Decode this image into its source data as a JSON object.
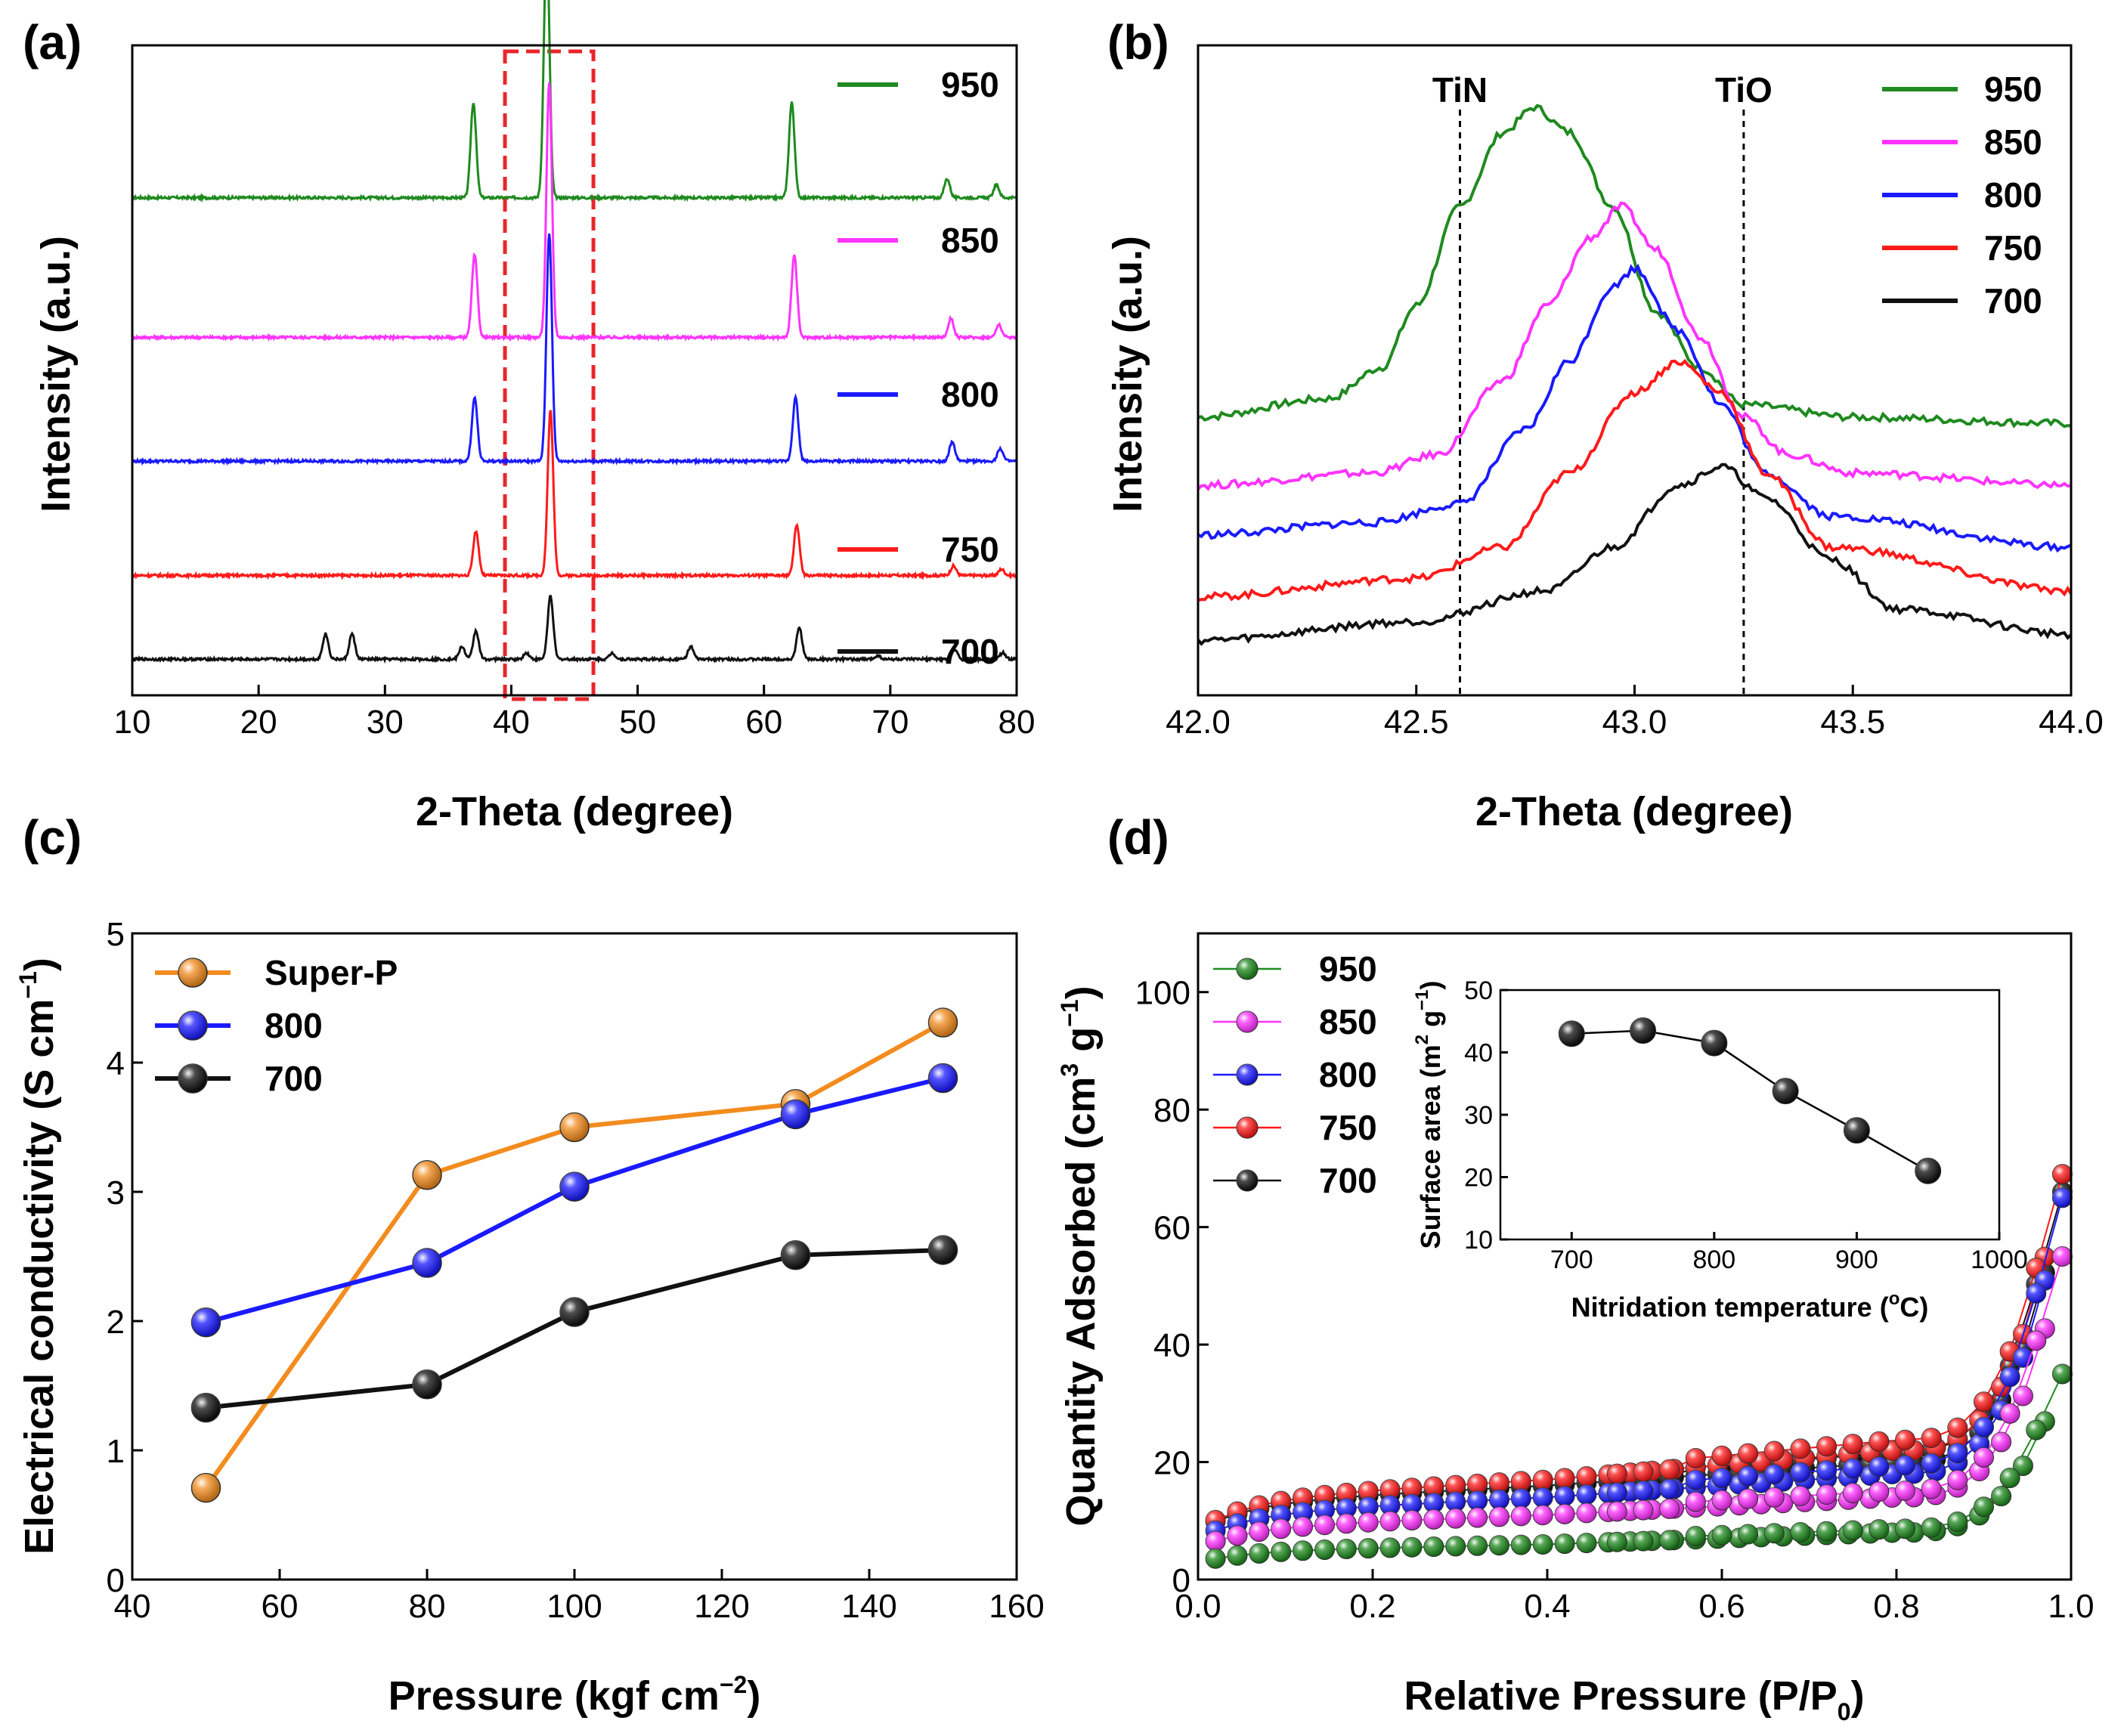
{
  "colors": {
    "950": "#1f8a1f",
    "850": "#ff33ff",
    "800": "#1a1aff",
    "750": "#ff1a1a",
    "700": "#111111",
    "superp": "#f28c1e",
    "box": "#e8262b",
    "gray_green": "#2e8b2e"
  },
  "chart_data": [
    {
      "id": "a",
      "letter": "(a)",
      "type": "line",
      "title": "",
      "xlabel": "2-Theta (degree)",
      "ylabel": "Intensity (a.u.)",
      "xlim": [
        10,
        80
      ],
      "x_ticks": [
        "10",
        "20",
        "30",
        "40",
        "50",
        "60",
        "70",
        "80"
      ],
      "y_ticks": [],
      "highlight_box_x": [
        39.5,
        46.5
      ],
      "series": [
        {
          "name": "950",
          "color_key": "950",
          "baseline": 0.76,
          "peaks": [
            [
              37.0,
              0.15
            ],
            [
              42.8,
              0.41
            ],
            [
              62.2,
              0.15
            ],
            [
              74.5,
              0.03
            ],
            [
              78.4,
              0.02
            ]
          ]
        },
        {
          "name": "850",
          "color_key": "850",
          "baseline": 0.54,
          "peaks": [
            [
              37.1,
              0.13
            ],
            [
              43.0,
              0.4
            ],
            [
              62.4,
              0.13
            ],
            [
              74.8,
              0.03
            ],
            [
              78.6,
              0.02
            ]
          ]
        },
        {
          "name": "800",
          "color_key": "800",
          "baseline": 0.345,
          "peaks": [
            [
              37.1,
              0.1
            ],
            [
              43.0,
              0.36
            ],
            [
              62.5,
              0.1
            ],
            [
              74.9,
              0.03
            ],
            [
              78.7,
              0.02
            ]
          ]
        },
        {
          "name": "750",
          "color_key": "750",
          "baseline": 0.165,
          "peaks": [
            [
              37.2,
              0.07
            ],
            [
              43.1,
              0.26
            ],
            [
              62.6,
              0.08
            ],
            [
              75.0,
              0.015
            ],
            [
              78.8,
              0.01
            ]
          ]
        },
        {
          "name": "700",
          "color_key": "700",
          "baseline": 0.033,
          "peaks": [
            [
              25.3,
              0.04
            ],
            [
              27.4,
              0.04
            ],
            [
              36.1,
              0.02
            ],
            [
              37.2,
              0.045
            ],
            [
              41.2,
              0.01
            ],
            [
              43.1,
              0.1
            ],
            [
              48.0,
              0.01
            ],
            [
              54.2,
              0.02
            ],
            [
              62.8,
              0.05
            ],
            [
              69.0,
              0.006
            ],
            [
              75.1,
              0.015
            ],
            [
              78.9,
              0.01
            ]
          ]
        }
      ],
      "legend": [
        "950",
        "850",
        "800",
        "750",
        "700"
      ]
    },
    {
      "id": "b",
      "letter": "(b)",
      "type": "line",
      "title": "",
      "xlabel": "2-Theta (degree)",
      "ylabel": "Intensity (a.u.)",
      "xlim": [
        42.0,
        44.0
      ],
      "x_ticks": [
        "42.0",
        "42.5",
        "43.0",
        "43.5",
        "44.0"
      ],
      "y_ticks": [],
      "ref_lines": [
        {
          "label": "TiN",
          "x": 42.6
        },
        {
          "label": "TiO",
          "x": 43.25
        }
      ],
      "series": [
        {
          "name": "950",
          "color_key": "950",
          "x": [
            42.0,
            42.3,
            42.42,
            42.5,
            42.6,
            42.7,
            42.77,
            42.85,
            42.95,
            43.05,
            43.15,
            43.25,
            43.5,
            44.0
          ],
          "y": [
            0.4,
            0.43,
            0.48,
            0.58,
            0.74,
            0.86,
            0.9,
            0.86,
            0.74,
            0.57,
            0.48,
            0.42,
            0.4,
            0.39
          ]
        },
        {
          "name": "850",
          "color_key": "850",
          "x": [
            42.0,
            42.4,
            42.55,
            42.7,
            42.8,
            42.9,
            42.97,
            43.05,
            43.15,
            43.25,
            43.35,
            43.5,
            44.0
          ],
          "y": [
            0.29,
            0.31,
            0.34,
            0.46,
            0.58,
            0.69,
            0.74,
            0.67,
            0.53,
            0.4,
            0.34,
            0.31,
            0.29
          ]
        },
        {
          "name": "800",
          "color_key": "800",
          "x": [
            42.0,
            42.4,
            42.6,
            42.75,
            42.85,
            42.95,
            43.0,
            43.1,
            43.2,
            43.3,
            43.45,
            44.0
          ],
          "y": [
            0.21,
            0.23,
            0.26,
            0.38,
            0.49,
            0.61,
            0.64,
            0.54,
            0.42,
            0.31,
            0.24,
            0.19
          ]
        },
        {
          "name": "750",
          "color_key": "750",
          "x": [
            42.0,
            42.5,
            42.7,
            42.85,
            43.0,
            43.1,
            43.2,
            43.3,
            43.45,
            44.0
          ],
          "y": [
            0.11,
            0.14,
            0.19,
            0.31,
            0.44,
            0.49,
            0.44,
            0.31,
            0.19,
            0.12
          ]
        },
        {
          "name": "700",
          "color_key": "700",
          "x": [
            42.0,
            42.5,
            42.8,
            42.95,
            43.1,
            43.2,
            43.3,
            43.45,
            43.6,
            44.0
          ],
          "y": [
            0.04,
            0.07,
            0.12,
            0.19,
            0.29,
            0.32,
            0.27,
            0.17,
            0.09,
            0.05
          ]
        }
      ],
      "legend": [
        "950",
        "850",
        "800",
        "750",
        "700"
      ]
    },
    {
      "id": "c",
      "letter": "(c)",
      "type": "line",
      "title": "",
      "xlabel_main": "Pressure (kgf cm",
      "xlabel_sup": "−2",
      "xlabel_end": ")",
      "ylabel_main": "Electrical conductivity (S cm",
      "ylabel_sup": "−1",
      "ylabel_end": ")",
      "xlim": [
        40,
        160
      ],
      "ylim": [
        0,
        5
      ],
      "x_ticks": [
        "40",
        "60",
        "80",
        "100",
        "120",
        "140",
        "160"
      ],
      "y_ticks": [
        "0",
        "1",
        "2",
        "3",
        "4",
        "5"
      ],
      "series": [
        {
          "name": "Super-P",
          "color_key": "superp",
          "x": [
            50,
            80,
            100,
            130,
            150
          ],
          "y": [
            0.71,
            3.13,
            3.5,
            3.68,
            4.31
          ]
        },
        {
          "name": "800",
          "color_key": "800",
          "x": [
            50,
            80,
            100,
            130,
            150
          ],
          "y": [
            1.99,
            2.45,
            3.04,
            3.6,
            3.88
          ]
        },
        {
          "name": "700",
          "color_key": "700",
          "x": [
            50,
            80,
            100,
            130,
            150
          ],
          "y": [
            1.33,
            1.51,
            2.07,
            2.51,
            2.55
          ]
        }
      ],
      "legend": [
        "Super-P",
        "800",
        "700"
      ]
    },
    {
      "id": "d",
      "letter": "(d)",
      "type": "scatter",
      "title": "",
      "xlabel_main": "Relative Pressure (P/P",
      "xlabel_sub": "0",
      "xlabel_end": ")",
      "ylabel_main": "Quantity Adsorbed (cm",
      "ylabel_sup1": "3",
      "ylabel_mid": " g",
      "ylabel_sup2": "−1",
      "ylabel_end": ")",
      "xlim": [
        0.0,
        1.0
      ],
      "ylim": [
        0,
        110
      ],
      "x_ticks": [
        "0.0",
        "0.2",
        "0.4",
        "0.6",
        "0.8",
        "1.0"
      ],
      "y_ticks": [
        "0",
        "20",
        "40",
        "60",
        "80",
        "100"
      ],
      "series": [
        {
          "name": "950",
          "color_key": "950",
          "low": 3.0,
          "linear": 6.0,
          "knee": 8.0,
          "max": 35
        },
        {
          "name": "850",
          "color_key": "850",
          "low": 5.5,
          "linear": 11.0,
          "knee": 14.0,
          "max": 55
        },
        {
          "name": "800",
          "color_key": "800",
          "low": 7.0,
          "linear": 14.0,
          "knee": 18.0,
          "max": 65
        },
        {
          "name": "750",
          "color_key": "750",
          "low": 8.5,
          "linear": 17.0,
          "knee": 22.0,
          "max": 69
        },
        {
          "name": "700",
          "color_key": "700",
          "low": 8.5,
          "linear": 16.0,
          "knee": 20.0,
          "max": 66
        }
      ],
      "legend": [
        "950",
        "850",
        "800",
        "750",
        "700"
      ],
      "inset": {
        "type": "line",
        "xlabel_main": "Nitridation temperature (",
        "xlabel_sup": "o",
        "xlabel_end": "C)",
        "ylabel_main": "Surface area (m",
        "ylabel_sup1": "2",
        "ylabel_mid": " g",
        "ylabel_sup2": "−1",
        "ylabel_end": ")",
        "xlim": [
          650,
          1000
        ],
        "ylim": [
          10,
          50
        ],
        "x_ticks": [
          "700",
          "800",
          "900",
          "1000"
        ],
        "y_ticks": [
          "10",
          "20",
          "30",
          "40",
          "50"
        ],
        "x": [
          700,
          750,
          800,
          850,
          900,
          950
        ],
        "y": [
          43.0,
          43.5,
          41.5,
          33.8,
          27.5,
          21.0
        ]
      }
    }
  ]
}
